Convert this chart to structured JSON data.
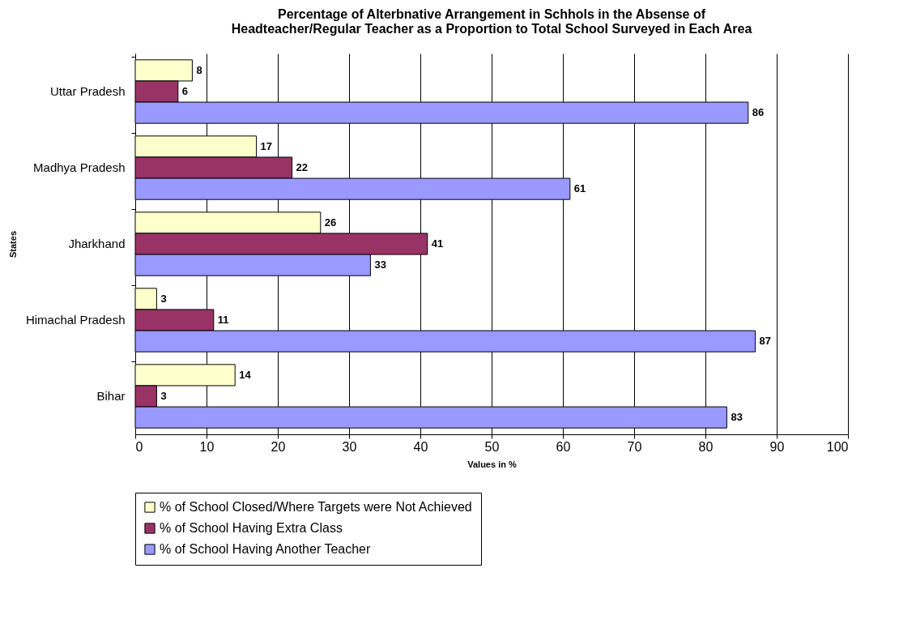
{
  "chart_data": {
    "type": "bar",
    "orientation": "horizontal",
    "title": "Percentage of Alterbnative Arrangement in Schhols in the Absense of Headteacher/Regular Teacher as a Proportion to Total School Surveyed in Each Area",
    "xlabel": "Values in %",
    "ylabel": "States",
    "categories": [
      "Uttar Pradesh",
      "Madhya Pradesh",
      "Jharkhand",
      "Himachal Pradesh",
      "Bihar"
    ],
    "series": [
      {
        "name": "% of School Closed/Where Targets were Not Achieved",
        "color": "#ffffcc",
        "values": [
          8,
          17,
          26,
          3,
          14
        ]
      },
      {
        "name": "% of School Having Extra Class",
        "color": "#993366",
        "values": [
          6,
          22,
          41,
          11,
          3
        ]
      },
      {
        "name": "% of School Having Another Teacher",
        "color": "#9999ff",
        "values": [
          86,
          61,
          33,
          87,
          83
        ]
      }
    ],
    "xlim": [
      0,
      100
    ],
    "xticks": [
      0,
      10,
      20,
      30,
      40,
      50,
      60,
      70,
      80,
      90,
      100
    ],
    "grid": "x",
    "legend": "bottom",
    "data_labels": true
  }
}
